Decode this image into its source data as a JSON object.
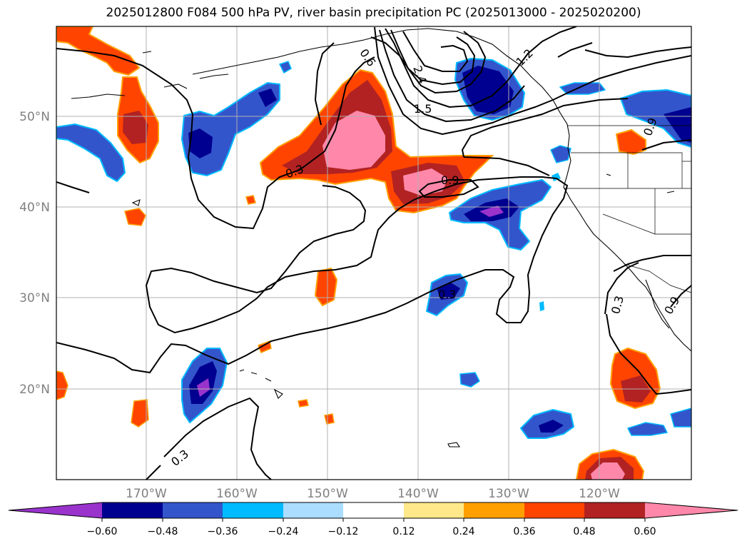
{
  "title": "2025012800 F084 500 hPa PV, river basin precipitation PC (2025013000 - 2025020200)",
  "map": {
    "lat_labels": [
      "50°N",
      "40°N",
      "30°N",
      "20°N"
    ],
    "lon_labels": [
      "170°W",
      "160°W",
      "150°W",
      "140°W",
      "130°W",
      "120°W"
    ],
    "contour_labels": [
      "0.6",
      "2.4",
      "1.5",
      "1.2",
      "0.9",
      "0.3",
      "0.9",
      "0.3",
      "0.3",
      "0.3",
      "0.9"
    ]
  },
  "colorbar": {
    "colors": [
      "#9933cc",
      "#000090",
      "#3355cc",
      "#00bbff",
      "#aaddff",
      "#ffffff",
      "#ffe88a",
      "#ffa000",
      "#ff4400",
      "#b22222",
      "#ff88aa"
    ],
    "tick_labels": [
      "−0.60",
      "−0.48",
      "−0.36",
      "−0.24",
      "−0.12",
      "0.12",
      "0.24",
      "0.36",
      "0.48",
      "0.60"
    ]
  }
}
